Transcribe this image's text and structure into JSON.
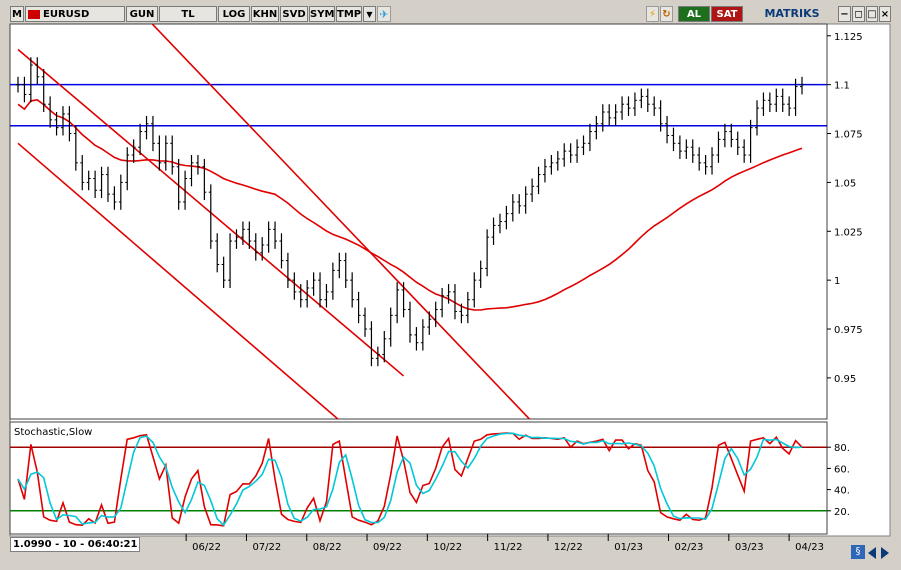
{
  "toolbar": {
    "m_label": "M",
    "symbol": "EURUSD",
    "period": "GUN",
    "currency": "TL",
    "log": "LOG",
    "khn": "KHN",
    "svd": "SVD",
    "sym": "SYM",
    "tmp": "TMP",
    "buy": "AL",
    "sell": "SAT",
    "brand": "MATRIKS"
  },
  "colors": {
    "price": "#000000",
    "channel": "#e00000",
    "level": "#0000e0",
    "stoch_k": "#e00000",
    "stoch_d": "#00c8d8",
    "over": "#a00000",
    "under": "#008000"
  },
  "status_text": "1.0990 - 10 - 06:40:21",
  "chart_data": [
    {
      "type": "candlestick",
      "title": "",
      "y_ticks": [
        "1.125",
        "1.1",
        "1.075",
        "1.05",
        "1.025",
        "1",
        "0.975",
        "0.95"
      ],
      "x_ticks": [
        "06/22",
        "07/22",
        "08/22",
        "09/22",
        "10/22",
        "11/22",
        "12/22",
        "01/23",
        "02/23",
        "03/23",
        "04/23"
      ],
      "ylim": [
        0.93,
        1.13
      ],
      "horizontal_levels": [
        1.1,
        1.079
      ],
      "close_series": [
        1.1,
        1.095,
        1.11,
        1.104,
        1.09,
        1.082,
        1.078,
        1.085,
        1.075,
        1.06,
        1.05,
        1.052,
        1.046,
        1.054,
        1.044,
        1.04,
        1.05,
        1.064,
        1.068,
        1.076,
        1.08,
        1.07,
        1.06,
        1.07,
        1.058,
        1.04,
        1.052,
        1.06,
        1.058,
        1.045,
        1.02,
        1.008,
        1.0,
        1.02,
        1.022,
        1.026,
        1.02,
        1.014,
        1.018,
        1.026,
        1.02,
        1.01,
        1.0,
        0.994,
        0.99,
        0.996,
        1.0,
        0.99,
        0.994,
        1.005,
        1.01,
        1.0,
        0.99,
        0.982,
        0.975,
        0.96,
        0.962,
        0.97,
        0.982,
        0.995,
        0.985,
        0.972,
        0.968,
        0.976,
        0.98,
        0.985,
        0.992,
        0.994,
        0.984,
        0.982,
        0.99,
        1.0,
        1.006,
        1.022,
        1.028,
        1.03,
        1.034,
        1.04,
        1.038,
        1.044,
        1.048,
        1.054,
        1.058,
        1.06,
        1.062,
        1.066,
        1.064,
        1.068,
        1.07,
        1.076,
        1.08,
        1.086,
        1.083,
        1.086,
        1.09,
        1.088,
        1.092,
        1.094,
        1.09,
        1.088,
        1.08,
        1.074,
        1.07,
        1.066,
        1.068,
        1.064,
        1.06,
        1.058,
        1.064,
        1.072,
        1.076,
        1.072,
        1.068,
        1.064,
        1.078,
        1.088,
        1.092,
        1.09,
        1.094,
        1.09,
        1.088,
        1.099,
        1.1
      ],
      "channel_lines": [
        {
          "from": [
            0,
            1.118
          ],
          "to": [
            60,
            0.951
          ]
        },
        {
          "from": [
            0,
            1.07
          ],
          "to": [
            60,
            0.9
          ]
        },
        {
          "from": [
            18,
            1.141
          ],
          "to": [
            88,
            0.9
          ]
        }
      ]
    },
    {
      "type": "line",
      "title": "Stochastic,Slow",
      "y_ticks": [
        "80.",
        "60.",
        "40.",
        "20."
      ],
      "ylim": [
        0,
        100
      ],
      "overbought": 80,
      "oversold": 20
    }
  ]
}
